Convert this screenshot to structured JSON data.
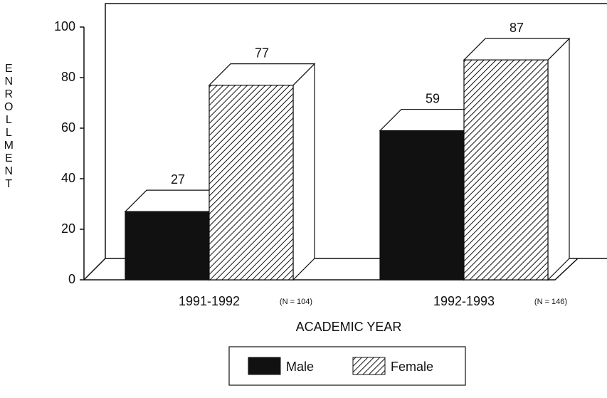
{
  "chart_data": {
    "type": "bar",
    "categories": [
      "1991-1992",
      "1992-1993"
    ],
    "annotations": [
      "(N = 104)",
      "(N = 146)"
    ],
    "series": [
      {
        "name": "Male",
        "color": "#111111",
        "values": [
          27,
          59
        ]
      },
      {
        "name": "Female",
        "color": "#ffffff",
        "hatch": true,
        "values": [
          77,
          87
        ]
      }
    ],
    "ylim": [
      0,
      100
    ],
    "yticks": [
      0,
      20,
      40,
      60,
      80,
      100
    ],
    "ylabel": "ENROLLMENT",
    "xlabel": "ACADEMIC YEAR",
    "legend": "bottom"
  }
}
